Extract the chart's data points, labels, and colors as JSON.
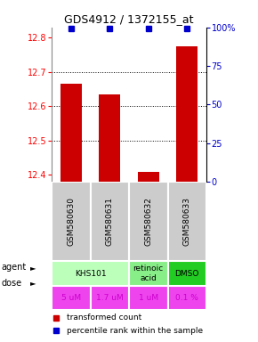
{
  "title": "GDS4912 / 1372155_at",
  "samples": [
    "GSM580630",
    "GSM580631",
    "GSM580632",
    "GSM580633"
  ],
  "bar_values": [
    12.665,
    12.635,
    12.41,
    12.775
  ],
  "bar_color": "#cc0000",
  "percentile_values": [
    99,
    99,
    99,
    99
  ],
  "percentile_color": "#0000cc",
  "ylim_left": [
    12.38,
    12.83
  ],
  "ylim_right": [
    0,
    100
  ],
  "yticks_left": [
    12.4,
    12.5,
    12.6,
    12.7,
    12.8
  ],
  "yticks_right": [
    0,
    25,
    50,
    75,
    100
  ],
  "ytick_labels_right": [
    "0",
    "25",
    "50",
    "75",
    "100%"
  ],
  "grid_values": [
    12.5,
    12.6,
    12.7
  ],
  "agent_defs": [
    {
      "cols": [
        0,
        1
      ],
      "label": "KHS101",
      "color": "#bbffbb"
    },
    {
      "cols": [
        2
      ],
      "label": "retinoic\nacid",
      "color": "#88ee88"
    },
    {
      "cols": [
        3
      ],
      "label": "DMSO",
      "color": "#22cc22"
    }
  ],
  "dose_labels": [
    "5 uM",
    "1.7 uM",
    "1 uM",
    "0.1 %"
  ],
  "dose_color": "#ee44ee",
  "dose_text_color": "#cc00cc",
  "sample_bg_color": "#cccccc",
  "sample_border_color": "#999999",
  "legend_red_label": "transformed count",
  "legend_blue_label": "percentile rank within the sample",
  "bar_width": 0.55
}
